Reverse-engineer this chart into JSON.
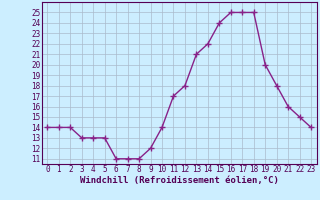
{
  "x": [
    0,
    1,
    2,
    3,
    4,
    5,
    6,
    7,
    8,
    9,
    10,
    11,
    12,
    13,
    14,
    15,
    16,
    17,
    18,
    19,
    20,
    21,
    22,
    23
  ],
  "y": [
    14,
    14,
    14,
    13,
    13,
    13,
    11,
    11,
    11,
    12,
    14,
    17,
    18,
    21,
    22,
    24,
    25,
    25,
    25,
    20,
    18,
    16,
    15,
    14
  ],
  "line_color": "#882288",
  "marker": "+",
  "marker_size": 4,
  "marker_lw": 1.0,
  "bg_color": "#cceeff",
  "grid_color": "#aabbcc",
  "xlabel": "Windchill (Refroidissement éolien,°C)",
  "xlabel_fontsize": 6.5,
  "xlabel_color": "#550055",
  "xlim": [
    -0.5,
    23.5
  ],
  "ylim": [
    10.5,
    26.0
  ],
  "yticks": [
    11,
    12,
    13,
    14,
    15,
    16,
    17,
    18,
    19,
    20,
    21,
    22,
    23,
    24,
    25
  ],
  "xticks": [
    0,
    1,
    2,
    3,
    4,
    5,
    6,
    7,
    8,
    9,
    10,
    11,
    12,
    13,
    14,
    15,
    16,
    17,
    18,
    19,
    20,
    21,
    22,
    23
  ],
  "tick_fontsize": 5.5,
  "tick_color": "#550055",
  "line_color_border": "#550055",
  "line_width": 1.0
}
